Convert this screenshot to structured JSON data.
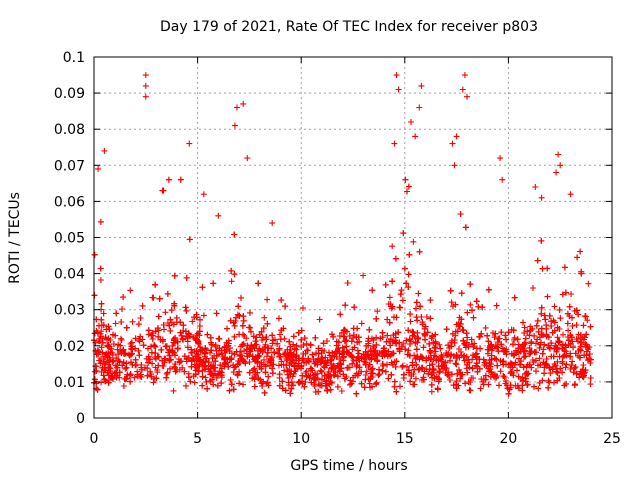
{
  "chart_data": {
    "type": "scatter",
    "title": "Day 179 of 2021, Rate Of TEC Index for receiver p803",
    "xlabel": "GPS time / hours",
    "ylabel": "ROTI / TECUs",
    "xlim": [
      0,
      25
    ],
    "ylim": [
      0,
      0.1
    ],
    "xticks": [
      0,
      5,
      10,
      15,
      20,
      25
    ],
    "yticks": [
      0,
      0.01,
      0.02,
      0.03,
      0.04,
      0.05,
      0.06,
      0.07,
      0.08,
      0.09,
      0.1
    ],
    "xtick_labels": [
      "0",
      "5",
      "10",
      "15",
      "20",
      "25"
    ],
    "ytick_labels": [
      "0",
      "0.01",
      "0.02",
      "0.03",
      "0.04",
      "0.05",
      "0.06",
      "0.07",
      "0.08",
      "0.09",
      "0.1"
    ],
    "grid": true,
    "marker": "+",
    "marker_color": "#ff0000",
    "x_data_range": [
      0,
      24
    ],
    "outliers": [
      {
        "x": 2.5,
        "y": 0.095
      },
      {
        "x": 2.5,
        "y": 0.092
      },
      {
        "x": 2.5,
        "y": 0.089
      },
      {
        "x": 0.2,
        "y": 0.069
      },
      {
        "x": 0.5,
        "y": 0.074
      },
      {
        "x": 4.6,
        "y": 0.076
      },
      {
        "x": 6.9,
        "y": 0.086
      },
      {
        "x": 7.2,
        "y": 0.087
      },
      {
        "x": 6.8,
        "y": 0.081
      },
      {
        "x": 7.4,
        "y": 0.072
      },
      {
        "x": 14.6,
        "y": 0.095
      },
      {
        "x": 14.7,
        "y": 0.091
      },
      {
        "x": 15.8,
        "y": 0.092
      },
      {
        "x": 15.7,
        "y": 0.086
      },
      {
        "x": 15.3,
        "y": 0.082
      },
      {
        "x": 15.5,
        "y": 0.078
      },
      {
        "x": 14.5,
        "y": 0.076
      },
      {
        "x": 17.9,
        "y": 0.095
      },
      {
        "x": 17.8,
        "y": 0.091
      },
      {
        "x": 18.0,
        "y": 0.089
      },
      {
        "x": 17.5,
        "y": 0.078
      },
      {
        "x": 17.3,
        "y": 0.076
      },
      {
        "x": 17.4,
        "y": 0.07
      },
      {
        "x": 19.6,
        "y": 0.072
      },
      {
        "x": 19.7,
        "y": 0.066
      },
      {
        "x": 22.4,
        "y": 0.073
      },
      {
        "x": 22.5,
        "y": 0.07
      },
      {
        "x": 22.3,
        "y": 0.068
      },
      {
        "x": 21.3,
        "y": 0.064
      },
      {
        "x": 21.6,
        "y": 0.061
      },
      {
        "x": 23.0,
        "y": 0.062
      },
      {
        "x": 3.3,
        "y": 0.063
      },
      {
        "x": 8.6,
        "y": 0.054
      },
      {
        "x": 5.3,
        "y": 0.062
      },
      {
        "x": 6.0,
        "y": 0.056
      }
    ]
  }
}
